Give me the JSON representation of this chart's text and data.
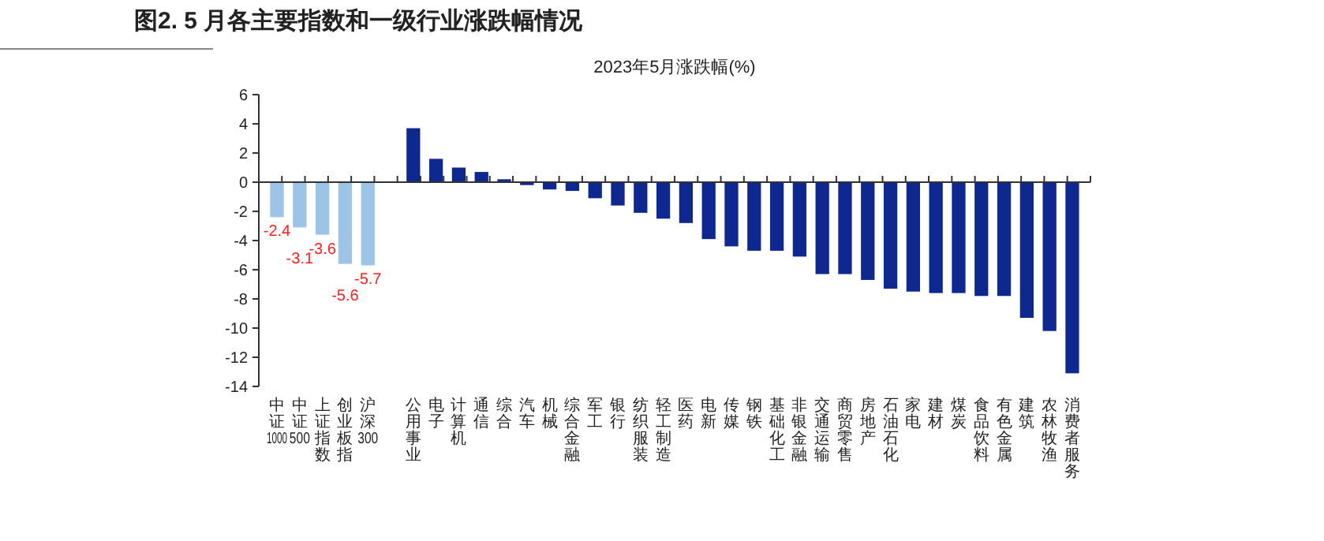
{
  "chart_data": {
    "type": "bar",
    "title": "图2. 5 月各主要指数和一级行业涨跌幅情况",
    "subtitle": "2023年5月涨跌幅(%)",
    "categories": [
      "中证1000",
      "中证500",
      "上证指数",
      "创业板指",
      "沪深300",
      null,
      "公用事业",
      "电子",
      "计算机",
      "通信",
      "综合",
      "汽车",
      "机械",
      "综合金融",
      "军工",
      "银行",
      "纺织服装",
      "轻工制造",
      "医药",
      "电新",
      "传媒",
      "钢铁",
      "基础化工",
      "非银金融",
      "交通运输",
      "商贸零售",
      "房地产",
      "石油石化",
      "家电",
      "建材",
      "煤炭",
      "食品饮料",
      "有色金属",
      "建筑",
      "农林牧渔",
      "消费者服务"
    ],
    "values": [
      -2.4,
      -3.1,
      -3.6,
      -5.6,
      -5.7,
      null,
      3.7,
      1.6,
      1.0,
      0.7,
      0.2,
      -0.2,
      -0.5,
      -0.6,
      -1.1,
      -1.6,
      -2.1,
      -2.5,
      -2.8,
      -3.9,
      -4.4,
      -4.7,
      -4.7,
      -5.1,
      -6.3,
      -6.3,
      -6.7,
      -7.3,
      -7.5,
      -7.6,
      -7.6,
      -7.8,
      -7.8,
      -9.3,
      -10.2,
      -13.1
    ],
    "value_labels": [
      "-2.4",
      "-3.1",
      "-3.6",
      "-5.6",
      "-5.7",
      null,
      null,
      null,
      null,
      null,
      null,
      null,
      null,
      null,
      null,
      null,
      null,
      null,
      null,
      null,
      null,
      null,
      null,
      null,
      null,
      null,
      null,
      null,
      null,
      null,
      null,
      null,
      null,
      null,
      null,
      null
    ],
    "colors": [
      "#9dc3e6",
      "#9dc3e6",
      "#9dc3e6",
      "#9dc3e6",
      "#9dc3e6",
      null,
      "#0f2890",
      "#0f2890",
      "#0f2890",
      "#0f2890",
      "#0f2890",
      "#0f2890",
      "#0f2890",
      "#0f2890",
      "#0f2890",
      "#0f2890",
      "#0f2890",
      "#0f2890",
      "#0f2890",
      "#0f2890",
      "#0f2890",
      "#0f2890",
      "#0f2890",
      "#0f2890",
      "#0f2890",
      "#0f2890",
      "#0f2890",
      "#0f2890",
      "#0f2890",
      "#0f2890",
      "#0f2890",
      "#0f2890",
      "#0f2890",
      "#0f2890",
      "#0f2890",
      "#0f2890"
    ],
    "ylim": [
      -14,
      6
    ],
    "yticks": [
      -14,
      -12,
      -10,
      -8,
      -6,
      -4,
      -2,
      0,
      2,
      4,
      6
    ]
  }
}
